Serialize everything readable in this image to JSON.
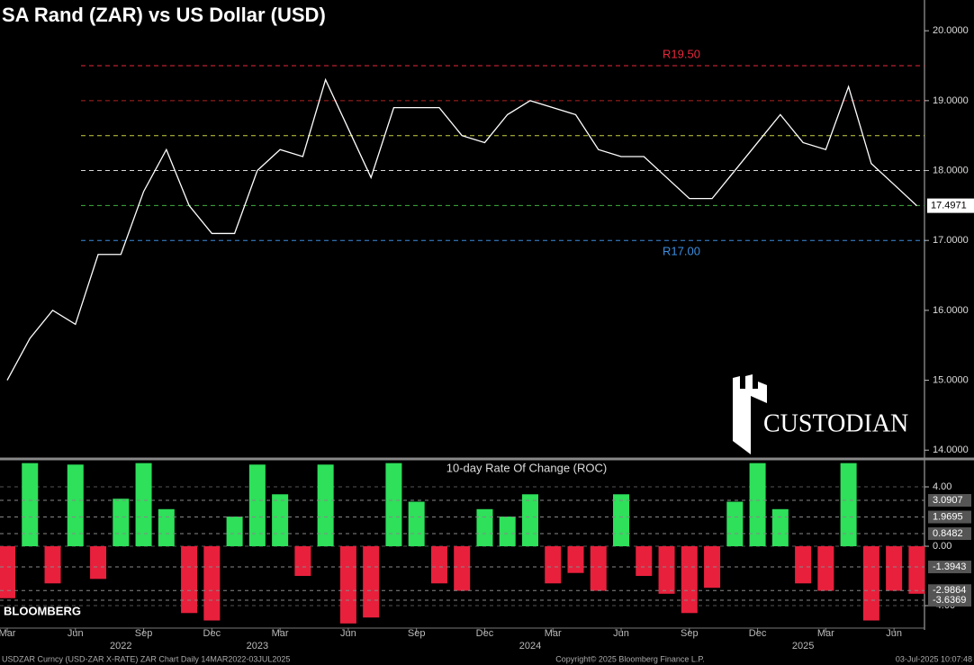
{
  "chart_data": [
    {
      "type": "line",
      "title": "SA Rand (ZAR) vs US Dollar (USD)",
      "x": [
        "2022-03",
        "2022-04",
        "2022-05",
        "2022-06",
        "2022-07",
        "2022-08",
        "2022-09",
        "2022-10",
        "2022-11",
        "2022-12",
        "2023-01",
        "2023-02",
        "2023-03",
        "2023-04",
        "2023-05",
        "2023-06",
        "2023-07",
        "2023-08",
        "2023-09",
        "2023-10",
        "2023-11",
        "2023-12",
        "2024-01",
        "2024-02",
        "2024-03",
        "2024-04",
        "2024-05",
        "2024-06",
        "2024-07",
        "2024-08",
        "2024-09",
        "2024-10",
        "2024-11",
        "2024-12",
        "2025-01",
        "2025-02",
        "2025-03",
        "2025-04",
        "2025-05",
        "2025-06",
        "2025-07"
      ],
      "series": [
        {
          "name": "USDZAR",
          "color": "#ffffff",
          "values": [
            15.0,
            15.6,
            16.0,
            15.8,
            16.8,
            16.8,
            17.7,
            18.3,
            17.5,
            17.1,
            17.1,
            18.0,
            18.3,
            18.2,
            19.3,
            18.6,
            17.9,
            18.9,
            18.9,
            18.9,
            18.5,
            18.4,
            18.8,
            19.0,
            18.9,
            18.8,
            18.3,
            18.2,
            18.2,
            17.9,
            17.6,
            17.6,
            18.0,
            18.4,
            18.8,
            18.4,
            18.3,
            19.2,
            18.1,
            17.8,
            17.4971
          ]
        }
      ],
      "last_label": "17.4971",
      "reference_lines": [
        {
          "value": 19.5,
          "label": "R19.50",
          "color": "#e8283c"
        },
        {
          "value": 19.0,
          "color": "#b02020"
        },
        {
          "value": 18.5,
          "color": "#c8d040"
        },
        {
          "value": 18.0,
          "color": "#d8d8d8"
        },
        {
          "value": 17.5,
          "color": "#40b040"
        },
        {
          "value": 17.0,
          "label": "R17.00",
          "color": "#3c8ee0"
        }
      ],
      "ylim": [
        13.9,
        20.44
      ],
      "yticks": [
        {
          "value": 14,
          "label": "14.0000"
        },
        {
          "value": 15,
          "label": "15.0000"
        },
        {
          "value": 16,
          "label": "16.0000"
        },
        {
          "value": 17,
          "label": "17.0000"
        },
        {
          "value": 18,
          "label": "18.0000"
        },
        {
          "value": 19,
          "label": "19.0000"
        },
        {
          "value": 20,
          "label": "20.0000"
        }
      ],
      "logo": "CUSTODIAN"
    },
    {
      "type": "bar",
      "title": "10-day Rate Of Change (ROC)",
      "x": [
        "2022-03",
        "2022-04",
        "2022-05",
        "2022-06",
        "2022-07",
        "2022-08",
        "2022-09",
        "2022-10",
        "2022-11",
        "2022-12",
        "2023-01",
        "2023-02",
        "2023-03",
        "2023-04",
        "2023-05",
        "2023-06",
        "2023-07",
        "2023-08",
        "2023-09",
        "2023-10",
        "2023-11",
        "2023-12",
        "2024-01",
        "2024-02",
        "2024-03",
        "2024-04",
        "2024-05",
        "2024-06",
        "2024-07",
        "2024-08",
        "2024-09",
        "2024-10",
        "2024-11",
        "2024-12",
        "2025-01",
        "2025-02",
        "2025-03",
        "2025-04",
        "2025-05",
        "2025-06",
        "2025-07"
      ],
      "values": [
        -3.5,
        5.6,
        -2.5,
        5.5,
        -2.2,
        3.2,
        5.6,
        2.5,
        -4.5,
        -5.0,
        2.0,
        5.5,
        3.5,
        -2.0,
        5.5,
        -5.2,
        -4.8,
        5.6,
        3.0,
        -2.5,
        -3.0,
        2.5,
        2.0,
        3.5,
        -2.5,
        -1.8,
        -3.0,
        3.5,
        -2.0,
        -3.2,
        -4.5,
        -2.8,
        3.0,
        5.6,
        2.5,
        -2.5,
        -3.0,
        5.6,
        -5.0,
        -3.0,
        -3.2
      ],
      "positive_color": "#2ee05a",
      "negative_color": "#e8203c",
      "levels": [
        {
          "value": 3.0907,
          "label": "3.0907"
        },
        {
          "value": 1.9695,
          "label": "1.9695"
        },
        {
          "value": 0.8482,
          "label": "0.8482"
        },
        {
          "value": -1.3943,
          "label": "-1.3943"
        },
        {
          "value": -2.9864,
          "label": "-2.9864"
        },
        {
          "value": -3.6369,
          "label": "-3.6369"
        }
      ],
      "ylim": [
        -5.15,
        5.76
      ],
      "yticks": [
        {
          "value": 4,
          "label": "4.00"
        },
        {
          "value": 0,
          "label": "0.00"
        },
        {
          "value": -4,
          "label": "-4.00"
        }
      ],
      "xticks": [
        {
          "value": "2022-03",
          "label": "Mar"
        },
        {
          "value": "2022-06",
          "label": "Jun"
        },
        {
          "value": "2022-09",
          "label": "Sep"
        },
        {
          "value": "2022-12",
          "label": "Dec"
        },
        {
          "value": "2023-03",
          "label": "Mar"
        },
        {
          "value": "2023-06",
          "label": "Jun"
        },
        {
          "value": "2023-09",
          "label": "Sep"
        },
        {
          "value": "2023-12",
          "label": "Dec"
        },
        {
          "value": "2024-03",
          "label": "Mar"
        },
        {
          "value": "2024-06",
          "label": "Jun"
        },
        {
          "value": "2024-09",
          "label": "Sep"
        },
        {
          "value": "2024-12",
          "label": "Dec"
        },
        {
          "value": "2025-03",
          "label": "Mar"
        },
        {
          "value": "2025-06",
          "label": "Jun"
        }
      ],
      "year_labels": [
        {
          "value": "2022-08",
          "label": "2022"
        },
        {
          "value": "2023-02",
          "label": "2023"
        },
        {
          "value": "2024-02",
          "label": "2024"
        },
        {
          "value": "2025-02",
          "label": "2025"
        }
      ],
      "source": "BLOOMBERG",
      "footer": "USDZAR Curncy (USD-ZAR X-RATE) ZAR Chart  Daily 14MAR2022-03JUL2025",
      "copyright": "Copyright© 2025 Bloomberg Finance L.P.",
      "timestamp": "03-Jul-2025 10:07:48"
    }
  ]
}
